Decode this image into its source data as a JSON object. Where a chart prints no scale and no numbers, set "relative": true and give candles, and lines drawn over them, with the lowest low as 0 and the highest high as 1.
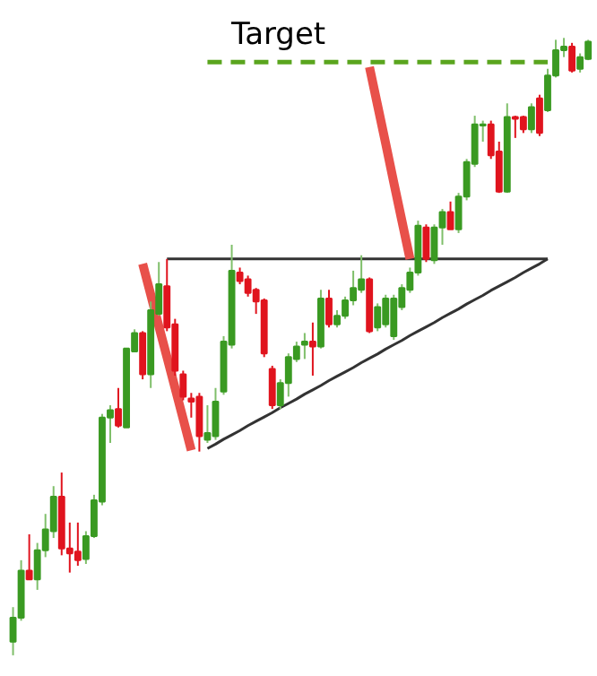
{
  "chart_data": {
    "type": "candlestick",
    "relative": true,
    "categories": [
      null,
      null,
      null,
      null,
      null,
      null,
      null,
      null,
      null,
      null,
      null,
      null,
      null,
      null,
      null,
      null,
      null,
      null,
      null,
      null,
      null,
      null,
      null,
      null,
      null,
      null,
      null,
      null,
      null,
      null,
      null,
      null,
      null,
      null,
      null,
      null,
      null,
      null,
      null,
      null,
      null,
      null,
      null,
      null,
      null,
      null,
      null,
      null,
      null,
      null,
      null,
      null,
      null,
      null,
      null,
      null,
      null,
      null,
      null,
      null,
      null,
      null,
      null,
      null,
      null,
      null,
      null,
      null,
      null,
      null,
      null,
      null
    ],
    "ohlc": [
      [
        0.022,
        0.078,
        0,
        0.061
      ],
      [
        0.061,
        0.154,
        0.056,
        0.137
      ],
      [
        0.137,
        0.196,
        0.123,
        0.123
      ],
      [
        0.123,
        0.182,
        0.106,
        0.17
      ],
      [
        0.17,
        0.229,
        0.159,
        0.204
      ],
      [
        0.201,
        0.274,
        0.19,
        0.257
      ],
      [
        0.257,
        0.296,
        0.162,
        0.173
      ],
      [
        0.173,
        0.215,
        0.134,
        0.165
      ],
      [
        0.168,
        0.215,
        0.145,
        0.154
      ],
      [
        0.156,
        0.201,
        0.148,
        0.193
      ],
      [
        0.193,
        0.26,
        0.19,
        0.251
      ],
      [
        0.249,
        0.391,
        0.243,
        0.385
      ],
      [
        0.385,
        0.405,
        0.344,
        0.397
      ],
      [
        0.399,
        0.433,
        0.369,
        0.372
      ],
      [
        0.369,
        0.497,
        0.369,
        0.497
      ],
      [
        0.492,
        0.528,
        0.492,
        0.522
      ],
      [
        0.522,
        0.525,
        0.447,
        0.455
      ],
      [
        0.455,
        0.573,
        0.433,
        0.559
      ],
      [
        0.553,
        0.637,
        0.55,
        0.601
      ],
      [
        0.598,
        0.642,
        0.525,
        0.531
      ],
      [
        0.536,
        0.545,
        0.453,
        0.461
      ],
      [
        0.455,
        0.461,
        0.413,
        0.419
      ],
      [
        0.416,
        0.425,
        0.385,
        0.411
      ],
      [
        0.419,
        0.425,
        0.33,
        0.355
      ],
      [
        0.349,
        0.405,
        0.344,
        0.36
      ],
      [
        0.355,
        0.433,
        0.349,
        0.411
      ],
      [
        0.427,
        0.517,
        0.422,
        0.508
      ],
      [
        0.503,
        0.665,
        0.497,
        0.623
      ],
      [
        0.62,
        0.628,
        0.601,
        0.606
      ],
      [
        0.609,
        0.615,
        0.581,
        0.587
      ],
      [
        0.592,
        0.595,
        0.553,
        0.573
      ],
      [
        0.575,
        0.578,
        0.483,
        0.489
      ],
      [
        0.464,
        0.469,
        0.399,
        0.405
      ],
      [
        0.405,
        0.447,
        0.399,
        0.441
      ],
      [
        0.441,
        0.489,
        0.419,
        0.483
      ],
      [
        0.48,
        0.508,
        0.475,
        0.5
      ],
      [
        0.503,
        0.522,
        0.48,
        0.508
      ],
      [
        0.508,
        0.539,
        0.453,
        0.5
      ],
      [
        0.5,
        0.592,
        0.497,
        0.578
      ],
      [
        0.578,
        0.592,
        0.531,
        0.536
      ],
      [
        0.536,
        0.559,
        0.531,
        0.55
      ],
      [
        0.55,
        0.581,
        0.545,
        0.575
      ],
      [
        0.575,
        0.623,
        0.567,
        0.595
      ],
      [
        0.592,
        0.648,
        0.587,
        0.609
      ],
      [
        0.609,
        0.612,
        0.522,
        0.525
      ],
      [
        0.531,
        0.57,
        0.525,
        0.564
      ],
      [
        0.536,
        0.584,
        0.531,
        0.578
      ],
      [
        0.517,
        0.584,
        0.511,
        0.578
      ],
      [
        0.564,
        0.601,
        0.559,
        0.595
      ],
      [
        0.592,
        0.628,
        0.587,
        0.62
      ],
      [
        0.62,
        0.704,
        0.615,
        0.696
      ],
      [
        0.693,
        0.698,
        0.637,
        0.642
      ],
      [
        0.64,
        0.698,
        0.634,
        0.693
      ],
      [
        0.693,
        0.723,
        0.665,
        0.718
      ],
      [
        0.718,
        0.735,
        0.69,
        0.69
      ],
      [
        0.69,
        0.749,
        0.684,
        0.743
      ],
      [
        0.743,
        0.804,
        0.737,
        0.799
      ],
      [
        0.796,
        0.874,
        0.791,
        0.86
      ],
      [
        0.858,
        0.866,
        0.832,
        0.86
      ],
      [
        0.86,
        0.866,
        0.804,
        0.81
      ],
      [
        0.816,
        0.832,
        0.749,
        0.751
      ],
      [
        0.751,
        0.894,
        0.749,
        0.872
      ],
      [
        0.872,
        0.874,
        0.838,
        0.869
      ],
      [
        0.872,
        0.874,
        0.846,
        0.852
      ],
      [
        0.852,
        0.894,
        0.846,
        0.888
      ],
      [
        0.902,
        0.908,
        0.841,
        0.846
      ],
      [
        0.883,
        0.95,
        0.88,
        0.939
      ],
      [
        0.939,
        0.997,
        0.936,
        0.98
      ],
      [
        0.98,
        1.0,
        0.969,
        0.986
      ],
      [
        0.986,
        0.992,
        0.944,
        0.947
      ],
      [
        0.95,
        0.975,
        0.944,
        0.969
      ],
      [
        0.966,
        0.997,
        0.964,
        0.994
      ]
    ],
    "series": [
      {
        "type": "line",
        "color": "#333333",
        "values": [
          null,
          null,
          null,
          null,
          null,
          null,
          null,
          null,
          null,
          null,
          null,
          null,
          null,
          null,
          null,
          null,
          null,
          null,
          null,
          0.642,
          0.642,
          0.642,
          0.642,
          0.642,
          0.642,
          0.642,
          0.642,
          0.642,
          0.642,
          0.642,
          0.642,
          0.642,
          0.642,
          0.642,
          0.642,
          0.642,
          0.642,
          0.642,
          0.642,
          0.642,
          0.642,
          0.642,
          0.642,
          0.642,
          0.642,
          0.642,
          0.642,
          0.642,
          0.642,
          0.642,
          0.642,
          0.642,
          0.642,
          0.642,
          0.642,
          0.642,
          0.642,
          0.642,
          0.642,
          0.642,
          0.642,
          0.642,
          0.642,
          0.642,
          0.642,
          0.642,
          0.642,
          null,
          null,
          null,
          null,
          null
        ]
      },
      {
        "type": "line",
        "color": "#333333",
        "values": [
          null,
          null,
          null,
          null,
          null,
          null,
          null,
          null,
          null,
          null,
          null,
          null,
          null,
          null,
          null,
          null,
          null,
          null,
          null,
          null,
          null,
          null,
          null,
          null,
          0.335,
          0.342,
          0.35,
          0.357,
          0.364,
          0.372,
          0.379,
          0.386,
          0.393,
          0.401,
          0.408,
          0.415,
          0.423,
          0.43,
          0.437,
          0.445,
          0.452,
          0.459,
          0.466,
          0.474,
          0.481,
          0.488,
          0.496,
          0.503,
          0.51,
          0.518,
          0.525,
          0.532,
          0.539,
          0.547,
          0.554,
          0.561,
          0.569,
          0.576,
          0.583,
          0.591,
          0.598,
          0.605,
          0.612,
          0.62,
          0.627,
          0.634,
          0.642,
          null,
          null,
          null,
          null,
          null
        ]
      },
      {
        "type": "line",
        "color": "#e8504a",
        "values": [
          null,
          null,
          null,
          null,
          null,
          null,
          null,
          null,
          null,
          null,
          null,
          null,
          null,
          null,
          null,
          null,
          0.634,
          0.584,
          0.533,
          0.483,
          0.433,
          0.383,
          0.332,
          null,
          null,
          null,
          null,
          null,
          null,
          null,
          null,
          null,
          null,
          null,
          null,
          null,
          null,
          null,
          null,
          null,
          null,
          null,
          null,
          null,
          null,
          null,
          null,
          null,
          null,
          null,
          null,
          null,
          null,
          null,
          null,
          null,
          null,
          null,
          null,
          null,
          null,
          null,
          null,
          null,
          null,
          null,
          null,
          null,
          null,
          null,
          null,
          null
        ]
      },
      {
        "type": "line",
        "color": "#e8504a",
        "values": [
          null,
          null,
          null,
          null,
          null,
          null,
          null,
          null,
          null,
          null,
          null,
          null,
          null,
          null,
          null,
          null,
          null,
          null,
          null,
          null,
          null,
          null,
          null,
          null,
          null,
          null,
          null,
          null,
          null,
          null,
          null,
          null,
          null,
          null,
          null,
          null,
          null,
          null,
          null,
          null,
          null,
          null,
          null,
          null,
          0.953,
          0.891,
          0.829,
          0.766,
          0.704,
          0.642,
          null,
          null,
          null,
          null,
          null,
          null,
          null,
          null,
          null,
          null,
          null,
          null,
          null,
          null,
          null,
          null,
          null,
          null,
          null,
          null,
          null,
          null
        ]
      },
      {
        "type": "line",
        "color": "#5aa51e",
        "line_style": "dashed",
        "values": [
          null,
          null,
          null,
          null,
          null,
          null,
          null,
          null,
          null,
          null,
          null,
          null,
          null,
          null,
          null,
          null,
          null,
          null,
          null,
          null,
          null,
          null,
          null,
          null,
          0.961,
          0.961,
          0.961,
          0.961,
          0.961,
          0.961,
          0.961,
          0.961,
          0.961,
          0.961,
          0.961,
          0.961,
          0.961,
          0.961,
          0.961,
          0.961,
          0.961,
          0.961,
          0.961,
          0.961,
          0.961,
          0.961,
          0.961,
          0.961,
          0.961,
          0.961,
          0.961,
          0.961,
          0.961,
          0.961,
          0.961,
          0.961,
          0.961,
          0.961,
          0.961,
          0.961,
          0.961,
          0.961,
          0.961,
          0.961,
          0.961,
          0.961,
          0.961,
          null,
          null,
          null,
          null,
          null
        ]
      }
    ],
    "annotations": [
      {
        "text": "Target",
        "y": 0.961
      }
    ]
  }
}
